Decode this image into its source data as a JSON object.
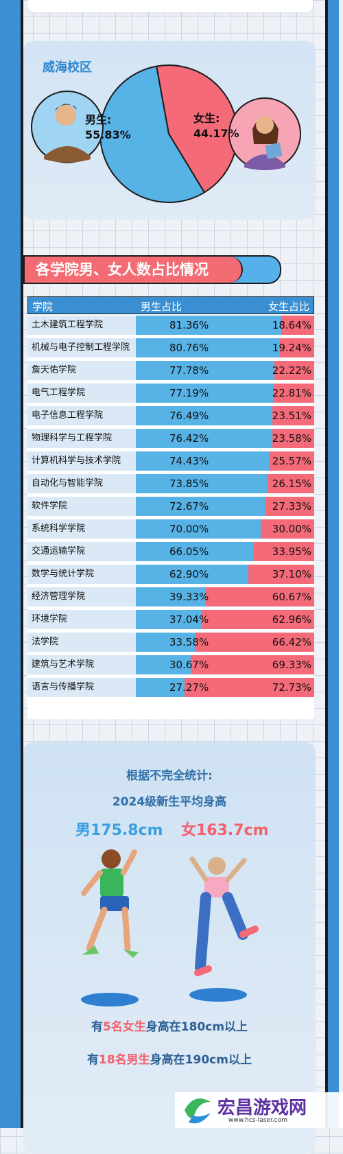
{
  "campus": {
    "label": "威海校区",
    "male_label": "男生:",
    "male_pct": "55.83%",
    "female_label": "女生:",
    "female_pct": "44.17%"
  },
  "section_title": "各学院男、女人数占比情况",
  "table": {
    "col_college": "学院",
    "col_male": "男生占比",
    "col_female": "女生占比"
  },
  "chart_data": [
    {
      "type": "pie",
      "labels": [
        "男生",
        "女生"
      ],
      "values": [
        55.83,
        44.17
      ],
      "colors": [
        "#57b2e6",
        "#f46a78"
      ],
      "title": "威海校区"
    },
    {
      "type": "bar",
      "stacked": true,
      "orientation": "horizontal",
      "title": "各学院男、女人数占比情况",
      "categories": [
        "土木建筑工程学院",
        "机械与电子控制工程学院",
        "詹天佑学院",
        "电气工程学院",
        "电子信息工程学院",
        "物理科学与工程学院",
        "计算机科学与技术学院",
        "自动化与智能学院",
        "软件学院",
        "系统科学学院",
        "交通运输学院",
        "数学与统计学院",
        "经济管理学院",
        "环境学院",
        "法学院",
        "建筑与艺术学院",
        "语言与传播学院"
      ],
      "series": [
        {
          "name": "男生占比",
          "values": [
            81.36,
            80.76,
            77.78,
            77.19,
            76.49,
            76.42,
            74.43,
            73.85,
            72.67,
            70.0,
            66.05,
            62.9,
            39.33,
            37.04,
            33.58,
            30.67,
            27.27
          ],
          "color": "#57b2e6"
        },
        {
          "name": "女生占比",
          "values": [
            18.64,
            19.24,
            22.22,
            22.81,
            23.51,
            23.58,
            25.57,
            26.15,
            27.33,
            30.0,
            33.95,
            37.1,
            60.67,
            62.96,
            66.42,
            69.33,
            72.73
          ],
          "color": "#f46a78"
        }
      ],
      "value_labels_male": [
        "81.36%",
        "80.76%",
        "77.78%",
        "77.19%",
        "76.49%",
        "76.42%",
        "74.43%",
        "73.85%",
        "72.67%",
        "70.00%",
        "66.05%",
        "62.90%",
        "39.33%",
        "37.04%",
        "33.58%",
        "30.67%",
        "27.27%"
      ],
      "value_labels_female": [
        "18.64%",
        "19.24%",
        "22.22%",
        "22.81%",
        "23.51%",
        "23.58%",
        "25.57%",
        "26.15%",
        "27.33%",
        "30.00%",
        "33.95%",
        "37.10%",
        "60.67%",
        "62.96%",
        "66.42%",
        "69.33%",
        "72.73%"
      ]
    }
  ],
  "stats": {
    "line1": "根据不完全统计:",
    "line2": "2024级新生平均身高",
    "male_height": "男175.8cm",
    "female_height": "女163.7cm",
    "fact1_pre": "有",
    "fact1_hl": "5名女生",
    "fact1_post": "身高在180cm以上",
    "fact2_pre": "有",
    "fact2_hl": "18名男生",
    "fact2_post": "身高在190cm以上"
  },
  "watermark": {
    "text": "宏昌游戏网",
    "url": "www.hcs-laser.com"
  }
}
